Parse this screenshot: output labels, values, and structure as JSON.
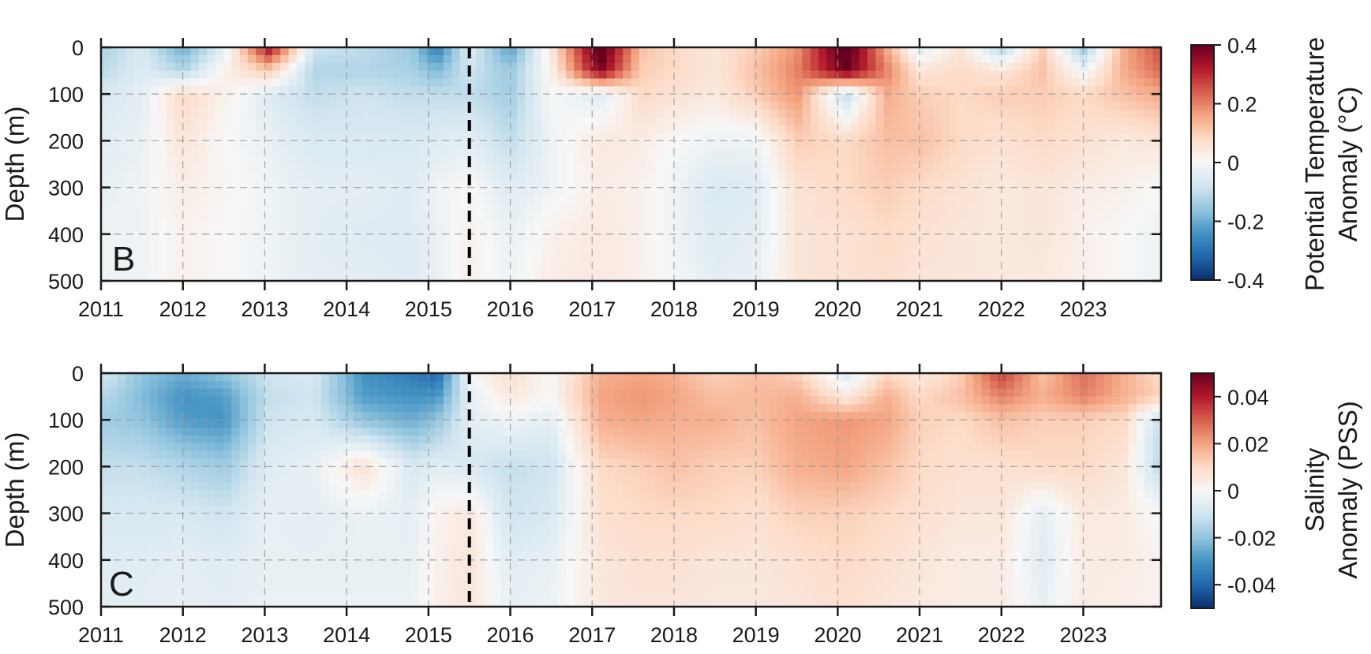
{
  "chart_data": [
    {
      "type": "heatmap",
      "panel_label": "B",
      "ylabel": "Depth (m)",
      "colorbar_label": [
        "Potential Temperature",
        "Anomaly (°C)"
      ],
      "xlim": [
        2011,
        2023.95
      ],
      "ylim": [
        0,
        500
      ],
      "y_reversed": true,
      "grid": true,
      "x_ticks": [
        2011,
        2012,
        2013,
        2014,
        2015,
        2016,
        2017,
        2018,
        2019,
        2020,
        2021,
        2022,
        2023
      ],
      "x_tick_labels": [
        "2011",
        "2012",
        "2013",
        "2014",
        "2015",
        "2016",
        "2017",
        "2018",
        "2019",
        "2020",
        "2021",
        "2022",
        "2023"
      ],
      "y_ticks": [
        0,
        100,
        200,
        300,
        400,
        500
      ],
      "y_tick_labels": [
        "0",
        "100",
        "200",
        "300",
        "400",
        "500"
      ],
      "clim": [
        -0.4,
        0.4
      ],
      "colorbar_ticks": [
        0.4,
        0.2,
        0,
        -0.2,
        -0.4
      ],
      "colorbar_tick_labels": [
        "0.4",
        "0.2",
        "0",
        "-0.2",
        "-0.4"
      ],
      "marker_line_x": 2015.5,
      "depths": [
        0,
        50,
        100,
        200,
        300,
        400,
        500
      ],
      "times": [
        2011.1,
        2011.5,
        2012.0,
        2012.5,
        2013.05,
        2013.6,
        2014.2,
        2014.8,
        2015.1,
        2015.5,
        2016.0,
        2016.5,
        2017.1,
        2017.6,
        2018.0,
        2018.5,
        2019.0,
        2019.5,
        2020.1,
        2020.6,
        2021.0,
        2021.5,
        2022.0,
        2022.5,
        2023.0,
        2023.5,
        2023.9
      ],
      "values": [
        [
          -0.12,
          -0.06,
          -0.2,
          -0.05,
          0.35,
          -0.08,
          -0.1,
          -0.15,
          -0.28,
          -0.05,
          -0.22,
          0.04,
          0.45,
          0.12,
          0.08,
          0.05,
          0.1,
          0.18,
          0.45,
          0.15,
          -0.05,
          0.05,
          -0.12,
          0.1,
          -0.15,
          0.15,
          0.25
        ],
        [
          -0.1,
          -0.05,
          -0.12,
          0.02,
          0.1,
          -0.12,
          -0.12,
          -0.13,
          -0.18,
          -0.08,
          -0.15,
          0.02,
          0.38,
          0.1,
          0.08,
          0.05,
          0.12,
          0.2,
          0.4,
          0.2,
          0.05,
          0.08,
          0.05,
          0.12,
          -0.02,
          0.15,
          0.22
        ],
        [
          -0.06,
          -0.04,
          0.08,
          0.02,
          -0.05,
          -0.1,
          -0.08,
          -0.1,
          -0.1,
          -0.1,
          -0.14,
          0.0,
          -0.05,
          0.08,
          0.06,
          0.04,
          0.1,
          0.18,
          -0.1,
          0.15,
          0.1,
          0.08,
          0.1,
          0.1,
          0.08,
          0.12,
          0.15
        ],
        [
          -0.04,
          -0.03,
          0.05,
          0.0,
          -0.03,
          -0.06,
          -0.06,
          -0.06,
          -0.05,
          -0.04,
          -0.1,
          -0.02,
          0.04,
          0.03,
          0.0,
          -0.02,
          -0.02,
          0.1,
          0.08,
          0.12,
          0.12,
          0.08,
          0.06,
          0.08,
          0.06,
          0.04,
          0.05
        ],
        [
          -0.03,
          -0.02,
          0.03,
          0.01,
          -0.02,
          -0.04,
          -0.04,
          -0.05,
          -0.02,
          0.0,
          -0.05,
          -0.02,
          0.03,
          0.02,
          -0.02,
          -0.06,
          -0.05,
          0.06,
          0.08,
          0.1,
          0.08,
          0.06,
          0.04,
          0.05,
          0.03,
          0.02,
          0.0
        ],
        [
          -0.02,
          -0.02,
          0.02,
          0.0,
          -0.02,
          -0.04,
          -0.05,
          -0.05,
          -0.03,
          0.02,
          -0.03,
          0.02,
          0.04,
          0.02,
          -0.02,
          -0.05,
          -0.04,
          0.05,
          0.06,
          0.08,
          0.06,
          0.05,
          0.04,
          0.05,
          0.02,
          0.0,
          -0.02
        ],
        [
          -0.02,
          -0.02,
          0.02,
          0.0,
          -0.02,
          -0.04,
          -0.04,
          -0.05,
          -0.03,
          0.02,
          -0.02,
          0.03,
          0.04,
          0.02,
          -0.01,
          -0.04,
          -0.03,
          0.05,
          0.06,
          0.07,
          0.05,
          0.05,
          0.04,
          0.04,
          0.02,
          0.0,
          -0.02
        ]
      ]
    },
    {
      "type": "heatmap",
      "panel_label": "C",
      "ylabel": "Depth (m)",
      "colorbar_label": [
        "Salinity",
        "Anomaly (PSS)"
      ],
      "xlim": [
        2011,
        2023.95
      ],
      "ylim": [
        0,
        500
      ],
      "y_reversed": true,
      "grid": true,
      "x_ticks": [
        2011,
        2012,
        2013,
        2014,
        2015,
        2016,
        2017,
        2018,
        2019,
        2020,
        2021,
        2022,
        2023
      ],
      "x_tick_labels": [
        "2011",
        "2012",
        "2013",
        "2014",
        "2015",
        "2016",
        "2017",
        "2018",
        "2019",
        "2020",
        "2021",
        "2022",
        "2023"
      ],
      "y_ticks": [
        0,
        100,
        200,
        300,
        400,
        500
      ],
      "y_tick_labels": [
        "0",
        "100",
        "200",
        "300",
        "400",
        "500"
      ],
      "clim": [
        -0.05,
        0.05
      ],
      "colorbar_ticks": [
        0.04,
        0.02,
        0,
        -0.02,
        -0.04
      ],
      "colorbar_tick_labels": [
        "0.04",
        "0.02",
        "0",
        "-0.02",
        "-0.04"
      ],
      "marker_line_x": 2015.5,
      "depths": [
        0,
        50,
        100,
        200,
        300,
        400,
        500
      ],
      "times": [
        2011.1,
        2011.5,
        2012.0,
        2012.5,
        2013.05,
        2013.6,
        2014.2,
        2014.8,
        2015.1,
        2015.5,
        2016.0,
        2016.5,
        2017.1,
        2017.6,
        2018.0,
        2018.5,
        2019.0,
        2019.5,
        2020.1,
        2020.6,
        2021.0,
        2021.5,
        2022.0,
        2022.5,
        2023.0,
        2023.5,
        2023.9
      ],
      "values": [
        [
          -0.01,
          -0.02,
          -0.025,
          -0.02,
          -0.01,
          -0.008,
          -0.03,
          -0.035,
          -0.04,
          0.0,
          0.008,
          0.0,
          0.018,
          0.02,
          0.018,
          0.012,
          0.015,
          0.012,
          -0.008,
          0.01,
          0.005,
          0.012,
          0.035,
          0.015,
          0.028,
          0.018,
          0.01
        ],
        [
          -0.015,
          -0.022,
          -0.03,
          -0.028,
          -0.012,
          -0.01,
          -0.028,
          -0.03,
          -0.03,
          -0.005,
          0.005,
          0.0,
          0.02,
          0.022,
          0.02,
          0.015,
          0.016,
          0.018,
          0.005,
          0.018,
          0.01,
          0.015,
          0.025,
          0.018,
          0.025,
          0.018,
          0.012
        ],
        [
          -0.018,
          -0.02,
          -0.028,
          -0.03,
          -0.01,
          -0.008,
          -0.02,
          -0.025,
          -0.02,
          -0.005,
          -0.002,
          -0.005,
          0.018,
          0.02,
          0.018,
          0.018,
          0.015,
          0.02,
          0.022,
          0.02,
          0.012,
          0.01,
          0.015,
          0.012,
          0.012,
          0.01,
          -0.01
        ],
        [
          -0.012,
          -0.012,
          -0.015,
          -0.018,
          -0.006,
          -0.004,
          0.008,
          -0.008,
          -0.005,
          -0.008,
          -0.012,
          -0.01,
          0.01,
          0.012,
          0.015,
          0.012,
          0.012,
          0.018,
          0.02,
          0.015,
          0.01,
          0.008,
          0.008,
          0.01,
          0.01,
          0.006,
          -0.012
        ],
        [
          -0.008,
          -0.008,
          -0.008,
          -0.01,
          -0.004,
          -0.005,
          -0.003,
          -0.005,
          0.002,
          0.005,
          -0.01,
          -0.008,
          0.008,
          0.01,
          0.01,
          0.01,
          0.008,
          0.012,
          0.012,
          0.01,
          0.008,
          0.006,
          0.006,
          -0.005,
          0.005,
          0.004,
          0.0
        ],
        [
          -0.006,
          -0.006,
          -0.005,
          -0.006,
          -0.004,
          -0.004,
          -0.004,
          -0.004,
          0.002,
          0.006,
          -0.006,
          -0.004,
          0.006,
          0.008,
          0.008,
          0.006,
          0.006,
          0.008,
          0.01,
          0.008,
          0.006,
          0.004,
          0.004,
          -0.006,
          0.004,
          0.004,
          0.002
        ],
        [
          -0.005,
          -0.005,
          -0.004,
          -0.005,
          -0.003,
          -0.003,
          -0.003,
          -0.003,
          0.003,
          0.006,
          -0.004,
          -0.003,
          0.005,
          0.006,
          0.006,
          0.005,
          0.005,
          0.006,
          0.008,
          0.006,
          0.005,
          0.004,
          0.004,
          -0.004,
          0.004,
          0.003,
          0.002
        ]
      ]
    }
  ],
  "colormap": {
    "name": "diverging-blue-red",
    "stops": [
      "#08306b",
      "#2166ac",
      "#4393c3",
      "#92c5de",
      "#d1e5f0",
      "#f7f7f7",
      "#fddbc7",
      "#f4a582",
      "#d6604d",
      "#b2182b",
      "#67001f"
    ]
  }
}
